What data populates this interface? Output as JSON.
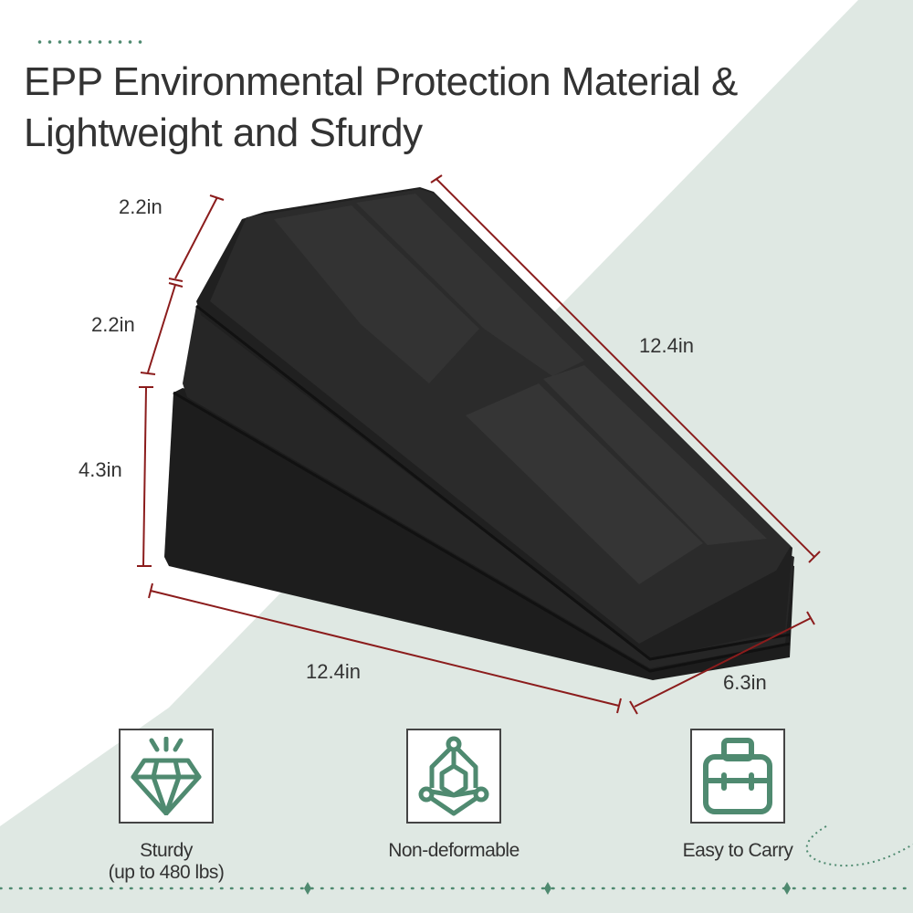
{
  "title": {
    "line1": "EPP Environmental Protection Material &",
    "line2": "Lightweight and Sfurdy"
  },
  "dimensions": {
    "top_height": "2.2in",
    "middle_height": "2.2in",
    "bottom_height": "4.3in",
    "slope_length": "12.4in",
    "base_length": "12.4in",
    "width": "6.3in"
  },
  "features": [
    {
      "icon": "diamond-icon",
      "label_line1": "Sturdy",
      "label_line2": "(up to 480 lbs)"
    },
    {
      "icon": "molecule-structure-icon",
      "label_line1": "Non-deformable"
    },
    {
      "icon": "briefcase-icon",
      "label_line1": "Easy to Carry"
    }
  ],
  "colors": {
    "accent_green": "#4f8a70",
    "background_green": "#dfe8e3",
    "dimension_line": "#8b1c1c",
    "product": "#1c1c1c"
  }
}
